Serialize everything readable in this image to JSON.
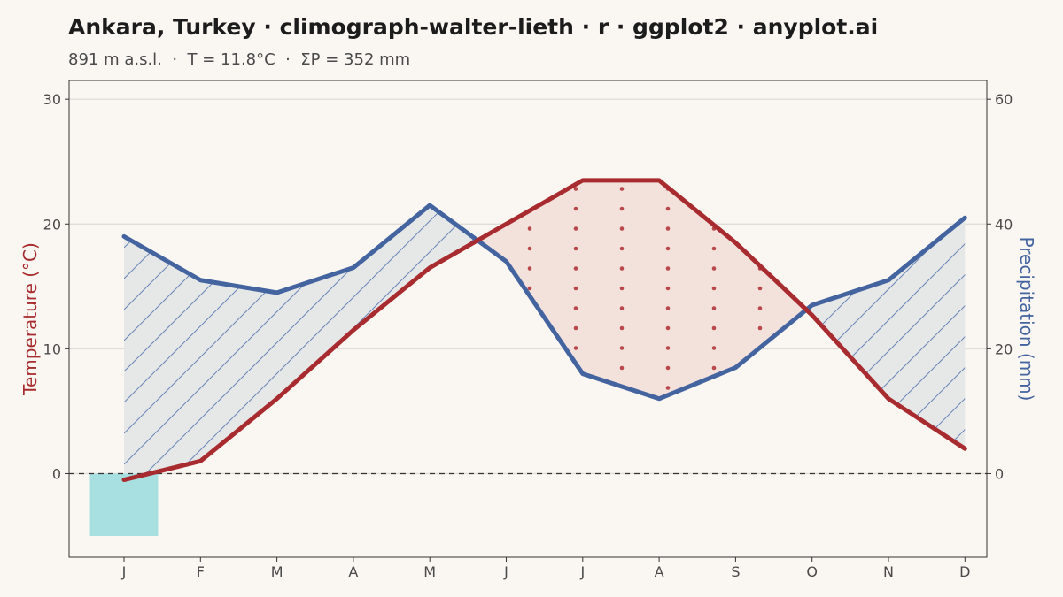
{
  "title": "Ankara, Turkey · climograph-walter-lieth · r · ggplot2 · anyplot.ai",
  "subtitle": "891 m a.s.l.  ·  T = 11.8°C  ·  ΣP = 352 mm",
  "colors": {
    "background": "#faf7f2",
    "temperature": "#a82c2f",
    "precipitation": "#4464a0",
    "humid_fill": "#e6e8e8",
    "arid_fill": "#f3e1dc",
    "frost": "#a8e0e2",
    "grid": "#e0ddd8",
    "zero_line": "#333333"
  },
  "chart_data": {
    "type": "line",
    "categories": [
      "J",
      "F",
      "M",
      "A",
      "M",
      "J",
      "J",
      "A",
      "S",
      "O",
      "N",
      "D"
    ],
    "series": [
      {
        "axis": "left",
        "values": [
          -0.5,
          1.0,
          6.0,
          11.5,
          16.5,
          20.0,
          23.5,
          23.5,
          18.5,
          12.7,
          6.0,
          2.0
        ]
      },
      {
        "axis": "right",
        "values": [
          38,
          31,
          29,
          33,
          43,
          34,
          16,
          12,
          17,
          27,
          31,
          41
        ]
      }
    ],
    "frost_months": [
      0
    ],
    "ylabel": "Temperature (°C)",
    "y2label": "Precipitation (mm)",
    "ylim": [
      -6.7,
      31.5
    ],
    "y2lim": [
      -13.4,
      63
    ],
    "yticks": [
      0,
      10,
      20,
      30
    ],
    "y2ticks": [
      0,
      20,
      40,
      60
    ],
    "grid": true,
    "scale_note": "10 °C = 20 mm"
  }
}
